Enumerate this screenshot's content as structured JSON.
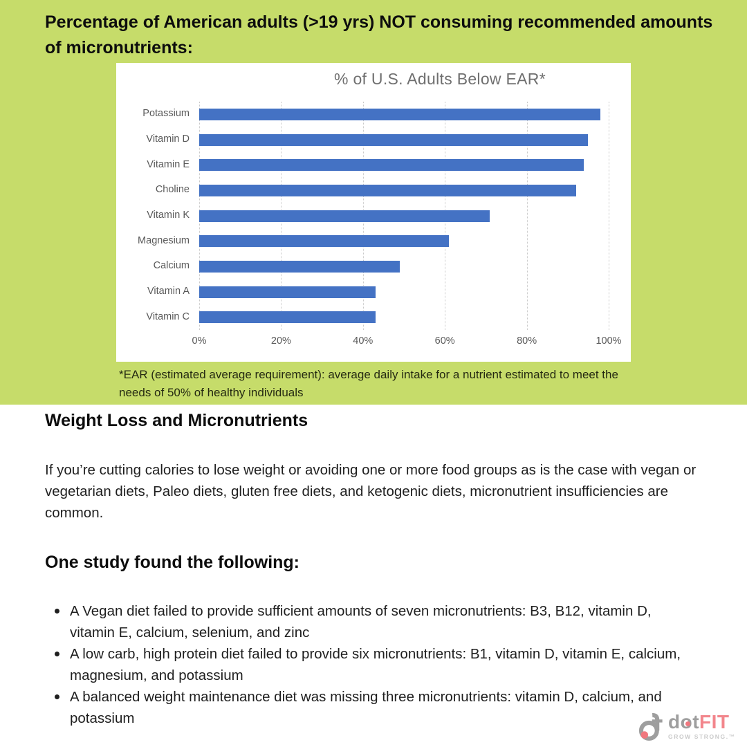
{
  "colors": {
    "background_green": "#c6dc6a",
    "bar_blue": "#4472c4",
    "logo_gray": "#9e9e9e",
    "logo_pink": "#f2868c"
  },
  "header": {
    "title": "Percentage of American adults (>19 yrs) NOT consuming recommended amounts of micronutrients:"
  },
  "chart_data": {
    "type": "bar",
    "orientation": "horizontal",
    "title": "% of U.S. Adults Below EAR*",
    "categories": [
      "Potassium",
      "Vitamin D",
      "Vitamin E",
      "Choline",
      "Vitamin K",
      "Magnesium",
      "Calcium",
      "Vitamin A",
      "Vitamin C"
    ],
    "values": [
      98,
      95,
      94,
      92,
      71,
      61,
      49,
      43,
      43
    ],
    "x_ticks": [
      "0%",
      "20%",
      "40%",
      "60%",
      "80%",
      "100%"
    ],
    "xlim": [
      0,
      100
    ],
    "xlabel": "",
    "ylabel": "",
    "grid": true,
    "legend": false,
    "bar_color": "#4472c4"
  },
  "chart_footnote": "*EAR (estimated average requirement): average daily intake for a nutrient estimated to meet the needs of 50% of healthy individuals",
  "body": {
    "heading_weight_loss": "Weight Loss and Micronutrients",
    "paragraph": "If you’re cutting calories to lose weight or avoiding one or more food groups as is the case with vegan or vegetarian diets, Paleo diets, gluten free diets, and ketogenic diets, micronutrient insufficiencies are common.",
    "heading_one_study": "One study found the following:",
    "bullets": [
      "A Vegan diet failed to provide sufficient amounts of seven micronutrients: B3, B12, vitamin D, vitamin E, calcium, selenium, and zinc",
      "A low carb, high protein diet failed to provide six micronutrients: B1, vitamin D, vitamin E, calcium, magnesium, and potassium",
      "A balanced weight maintenance diet was missing three micronutrients: vitamin D, calcium, and potassium"
    ]
  },
  "logo": {
    "text_dot": "dot",
    "text_fit": "FIT",
    "tagline": "GROW STRONG.™"
  }
}
